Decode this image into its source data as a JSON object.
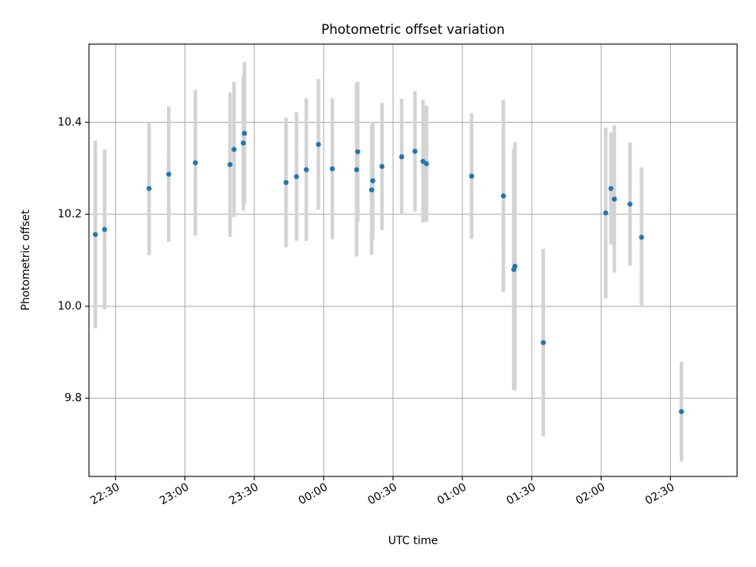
{
  "chart_data": {
    "type": "scatter",
    "title": "Photometric offset variation",
    "xlabel": "UTC time",
    "ylabel": "Photometric offset",
    "x_ticks": [
      "22:30",
      "23:00",
      "23:30",
      "00:00",
      "00:30",
      "01:00",
      "01:30",
      "02:00",
      "02:30"
    ],
    "y_ticks": [
      "9.8",
      "10.0",
      "10.2",
      "10.4"
    ],
    "xlim": [
      "22:18:30",
      "02:58:50"
    ],
    "ylim": [
      9.63,
      10.57
    ],
    "grid": true,
    "colors": {
      "points": "#1f77b4",
      "error_bars": "#d3d3d3",
      "grid": "#b0b0b0"
    },
    "points": [
      {
        "x": "22:21:15",
        "y": 10.156,
        "err": 0.204
      },
      {
        "x": "22:25:15",
        "y": 10.167,
        "err": 0.174
      },
      {
        "x": "22:44:30",
        "y": 10.256,
        "err": 0.145
      },
      {
        "x": "22:53:00",
        "y": 10.287,
        "err": 0.147
      },
      {
        "x": "23:04:30",
        "y": 10.312,
        "err": 0.158
      },
      {
        "x": "23:19:30",
        "y": 10.308,
        "err": 0.157
      },
      {
        "x": "23:21:15",
        "y": 10.341,
        "err": 0.147
      },
      {
        "x": "23:25:15",
        "y": 10.355,
        "err": 0.147
      },
      {
        "x": "23:25:45",
        "y": 10.376,
        "err": 0.155
      },
      {
        "x": "23:43:45",
        "y": 10.269,
        "err": 0.141
      },
      {
        "x": "23:48:15",
        "y": 10.282,
        "err": 0.14
      },
      {
        "x": "23:52:30",
        "y": 10.297,
        "err": 0.155
      },
      {
        "x": "23:57:45",
        "y": 10.352,
        "err": 0.142
      },
      {
        "x": "00:03:45",
        "y": 10.299,
        "err": 0.153
      },
      {
        "x": "00:14:15",
        "y": 10.297,
        "err": 0.189
      },
      {
        "x": "00:14:45",
        "y": 10.336,
        "err": 0.152
      },
      {
        "x": "00:20:45",
        "y": 10.253,
        "err": 0.141
      },
      {
        "x": "00:21:15",
        "y": 10.273,
        "err": 0.128
      },
      {
        "x": "00:25:15",
        "y": 10.304,
        "err": 0.138
      },
      {
        "x": "00:33:45",
        "y": 10.325,
        "err": 0.126
      },
      {
        "x": "00:39:30",
        "y": 10.337,
        "err": 0.131
      },
      {
        "x": "00:43:00",
        "y": 10.315,
        "err": 0.133
      },
      {
        "x": "00:44:30",
        "y": 10.31,
        "err": 0.126
      },
      {
        "x": "01:04:00",
        "y": 10.283,
        "err": 0.137
      },
      {
        "x": "01:17:45",
        "y": 10.24,
        "err": 0.209
      },
      {
        "x": "01:22:15",
        "y": 10.08,
        "err": 0.262
      },
      {
        "x": "01:22:45",
        "y": 10.087,
        "err": 0.27
      },
      {
        "x": "01:35:00",
        "y": 9.921,
        "err": 0.204
      },
      {
        "x": "02:02:00",
        "y": 10.203,
        "err": 0.186
      },
      {
        "x": "02:04:15",
        "y": 10.256,
        "err": 0.122
      },
      {
        "x": "02:05:45",
        "y": 10.233,
        "err": 0.16
      },
      {
        "x": "02:12:30",
        "y": 10.222,
        "err": 0.134
      },
      {
        "x": "02:17:30",
        "y": 10.15,
        "err": 0.152
      },
      {
        "x": "02:34:45",
        "y": 9.771,
        "err": 0.108
      }
    ]
  }
}
